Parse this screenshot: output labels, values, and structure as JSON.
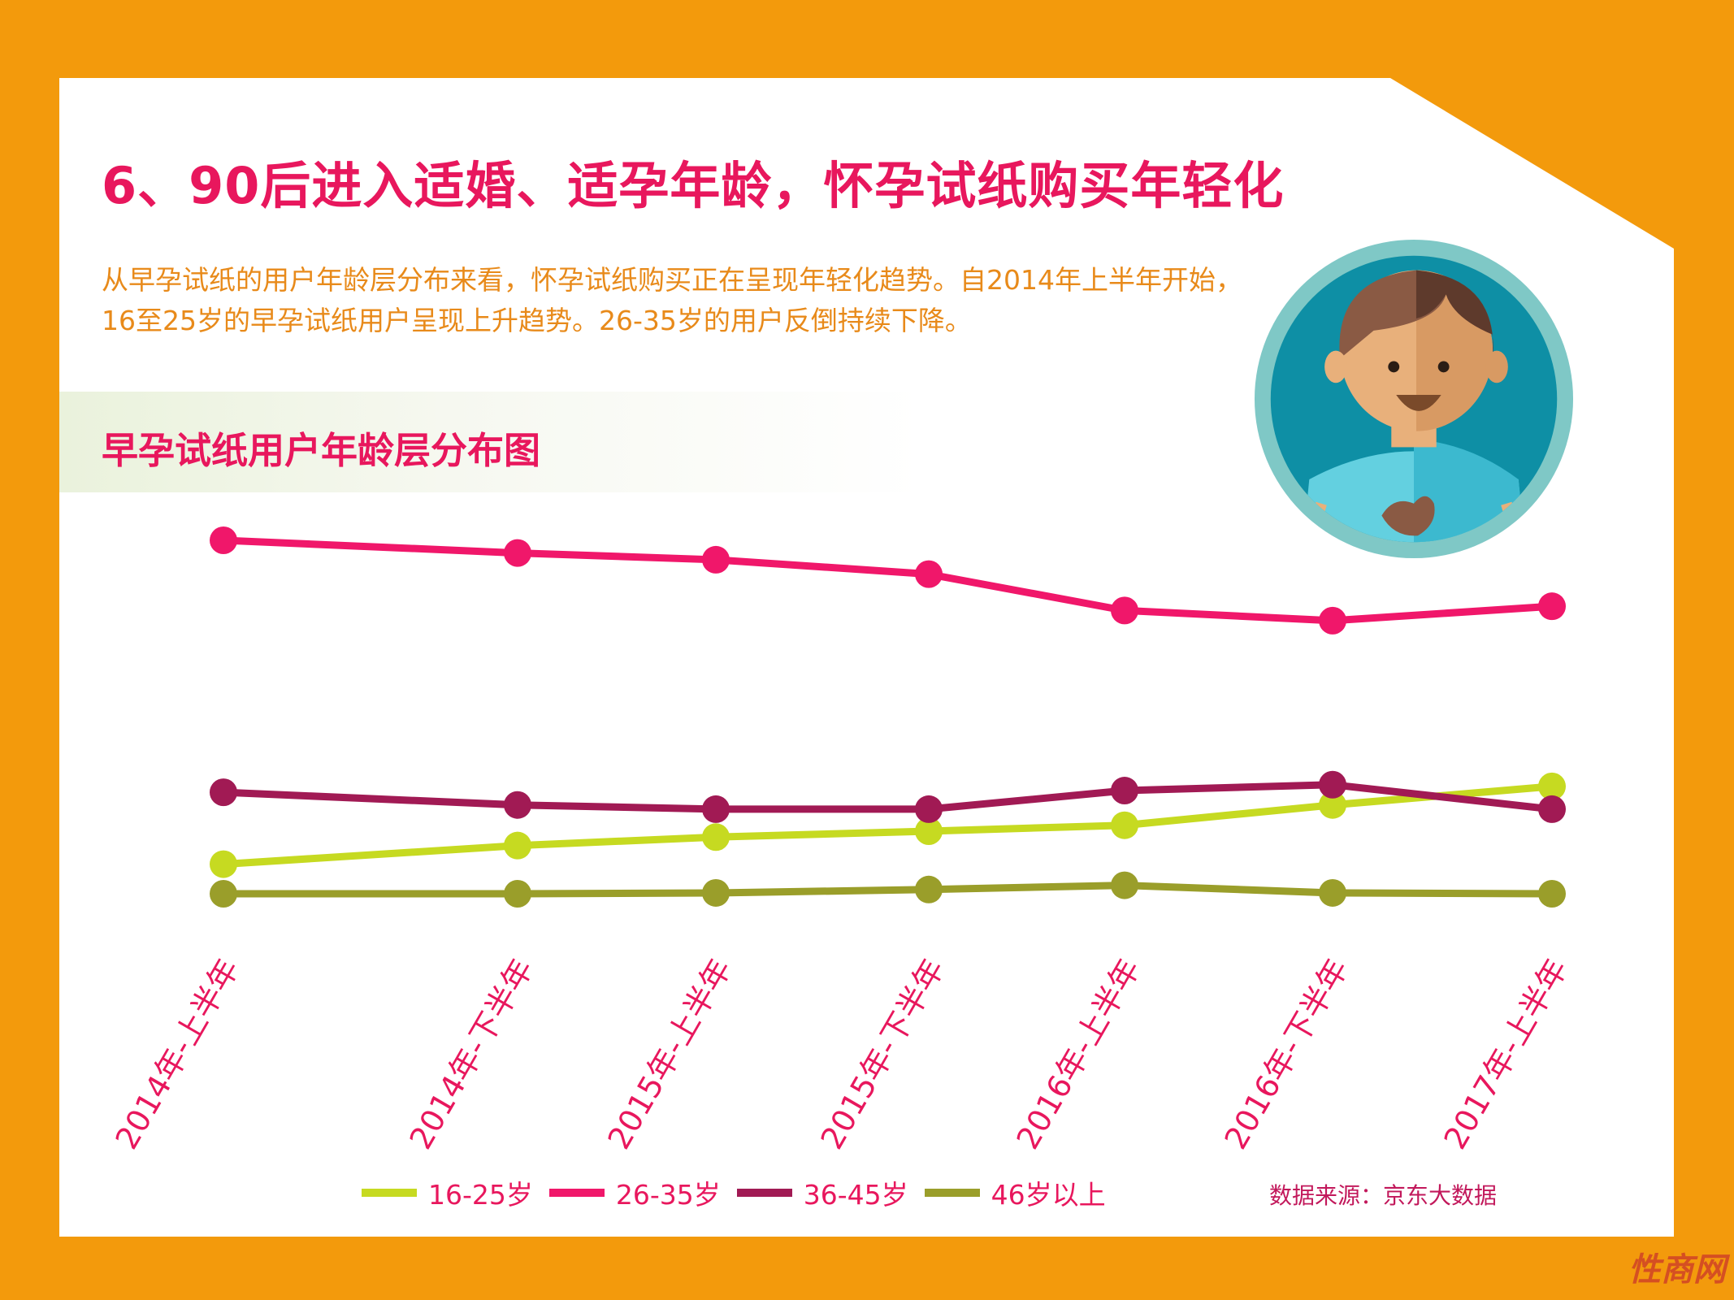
{
  "title": "6、90后进入适婚、适孕年龄，怀孕试纸购买年轻化",
  "intro": "从早孕试纸的用户年龄层分布来看，怀孕试纸购买正在呈现年轻化趋势。自2014年上半年开始，16至25岁的早孕试纸用户呈现上升趋势。26-35岁的用户反倒持续下降。",
  "chart_subtitle": "早孕试纸用户年龄层分布图",
  "source": "数据来源：京东大数据",
  "watermark": "性商网",
  "colors": {
    "background": "#F39A0C",
    "accent": "#E8175D",
    "intro_text": "#E88A1A"
  },
  "chart_data": {
    "type": "line",
    "title": "早孕试纸用户年龄层分布图",
    "categories": [
      "2014年-上半年",
      "2014年-下半年",
      "2015年-上半年",
      "2015年-下半年",
      "2016年-上半年",
      "2016年-下半年",
      "2017年-上半年"
    ],
    "series": [
      {
        "name": "16-25岁",
        "color": "#C6DA21",
        "values": [
          15.0,
          17.2,
          18.2,
          18.9,
          19.6,
          22.0,
          24.2
        ]
      },
      {
        "name": "26-35岁",
        "color": "#F0176A",
        "values": [
          53.3,
          51.8,
          51.0,
          49.3,
          45.0,
          43.8,
          45.5
        ]
      },
      {
        "name": "36-45岁",
        "color": "#A11A54",
        "values": [
          23.5,
          22.0,
          21.5,
          21.5,
          23.7,
          24.4,
          21.5
        ]
      },
      {
        "name": "46岁以上",
        "color": "#9A9E2A",
        "values": [
          11.5,
          11.5,
          11.6,
          12.0,
          12.5,
          11.6,
          11.5
        ]
      }
    ],
    "y_axis_visible": false,
    "grid": false,
    "legend": "bottom"
  }
}
